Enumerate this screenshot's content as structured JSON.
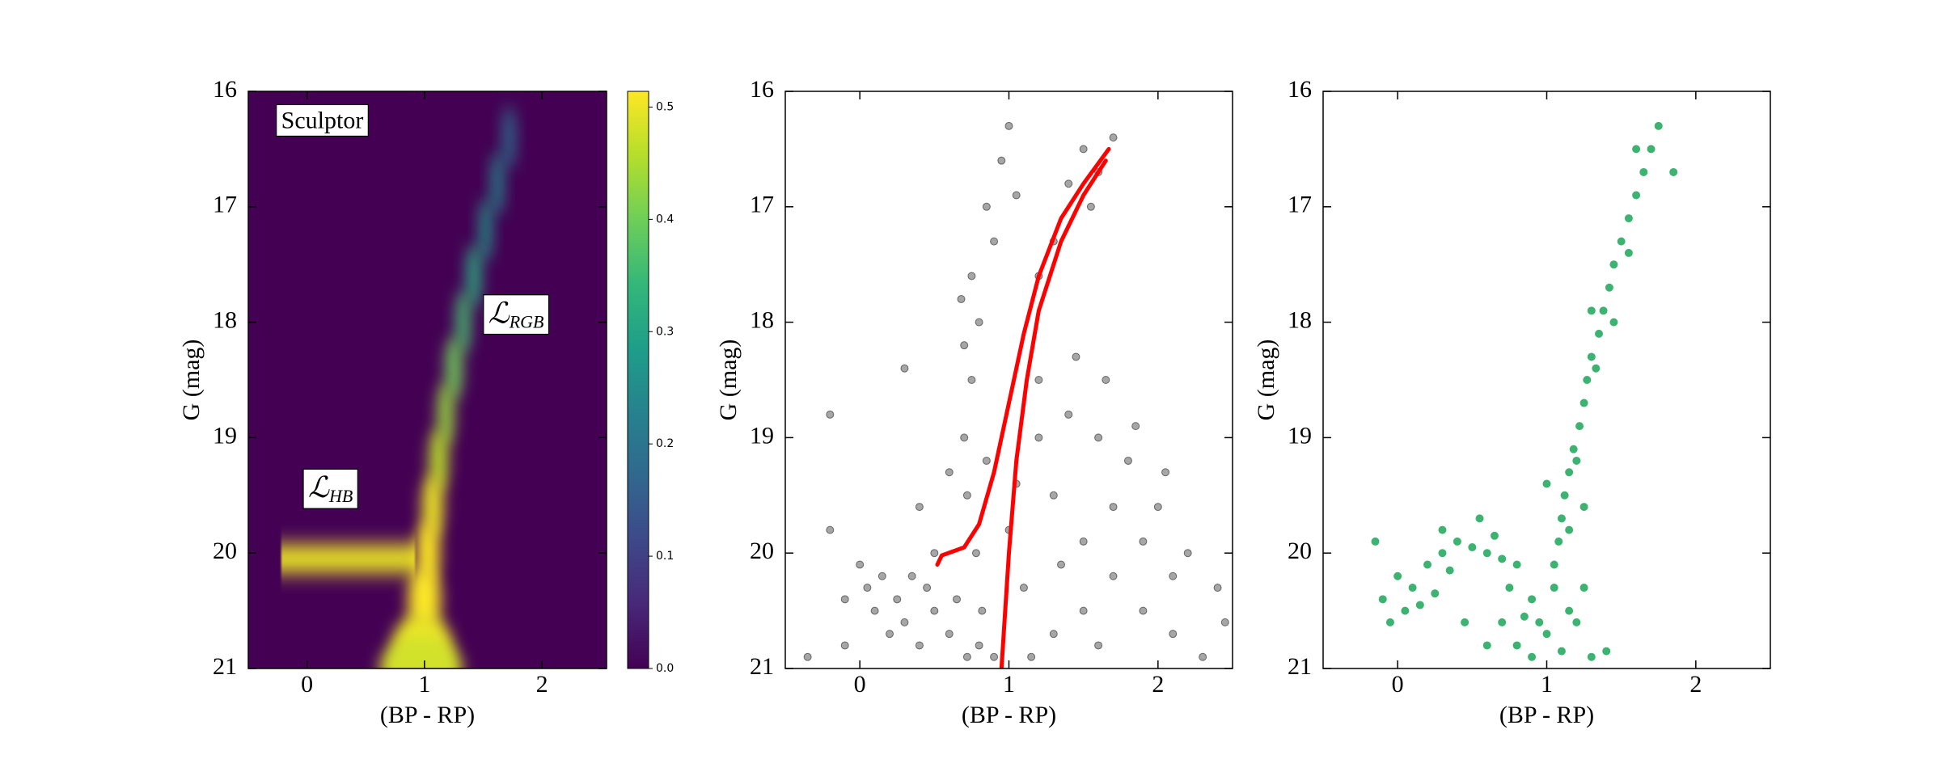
{
  "chart_data": [
    {
      "type": "heatmap",
      "xlabel": "(BP - RP)",
      "ylabel": "G (mag)",
      "xlim": [
        -0.5,
        2.55
      ],
      "ylim": [
        21,
        16
      ],
      "xticks": [
        0,
        1,
        2
      ],
      "yticks": [
        16,
        17,
        18,
        19,
        20,
        21
      ],
      "annotations": [
        {
          "text": "Sculptor",
          "x": 0.13,
          "y": 16.27
        },
        {
          "text": "ℒ",
          "sub": "RGB",
          "x": 1.78,
          "y": 17.95
        },
        {
          "text": "ℒ",
          "sub": "HB",
          "x": 0.2,
          "y": 19.46
        }
      ],
      "ridge": {
        "x": [
          1.72,
          1.62,
          1.52,
          1.42,
          1.33,
          1.25,
          1.18,
          1.12,
          1.07,
          1.03,
          1.0,
          0.98,
          0.97
        ],
        "y": [
          16.4,
          16.8,
          17.2,
          17.6,
          18.0,
          18.4,
          18.8,
          19.2,
          19.6,
          20.0,
          20.4,
          20.8,
          21.0
        ],
        "values": [
          0.2,
          0.25,
          0.28,
          0.32,
          0.36,
          0.4,
          0.43,
          0.46,
          0.5,
          0.52,
          0.52,
          0.5,
          0.48
        ],
        "widths": [
          0.05,
          0.05,
          0.05,
          0.06,
          0.06,
          0.07,
          0.07,
          0.08,
          0.09,
          0.1,
          0.14,
          0.25,
          0.35
        ]
      },
      "band": {
        "x": [
          -0.22,
          0.92
        ],
        "y": 20.05,
        "sigma": 0.12,
        "value": 0.5
      },
      "colormap": "viridis",
      "clim": [
        0,
        0.514
      ],
      "cticks": [
        {
          "value": 0,
          "label": "0.0"
        },
        {
          "value": 0.1,
          "label": "0.1"
        },
        {
          "value": 0.2,
          "label": "0.2"
        },
        {
          "value": 0.3,
          "label": "0.3"
        },
        {
          "value": 0.4,
          "label": "0.4"
        },
        {
          "value": 0.5,
          "label": "0.5"
        }
      ]
    },
    {
      "type": "scatter",
      "xlabel": "(BP - RP)",
      "ylabel": "G (mag)",
      "xlim": [
        -0.5,
        2.5
      ],
      "ylim": [
        21,
        16
      ],
      "xticks": [
        0,
        1,
        2
      ],
      "yticks": [
        16,
        17,
        18,
        19,
        20,
        21
      ],
      "series": [
        {
          "type": "points",
          "color": "#000000",
          "x": [
            0.05,
            0.15,
            0.25,
            0.1,
            0.35,
            0.3,
            0.45,
            0.2,
            0.0,
            -0.1,
            0.5,
            0.4,
            0.7,
            0.75,
            0.8,
            0.72,
            0.78,
            0.65,
            0.8,
            0.85,
            0.7,
            0.75,
            0.68,
            0.82,
            0.9,
            0.6,
            0.72,
            0.85,
            0.95,
            1.0,
            0.9,
            1.05,
            1.4,
            1.5,
            1.55,
            1.6,
            1.7,
            1.3,
            1.2,
            1.2,
            1.4,
            1.6,
            1.8,
            2.0,
            2.2,
            2.4,
            1.3,
            1.5,
            1.7,
            1.9,
            2.1,
            2.3,
            1.1,
            1.3,
            1.5,
            1.7,
            1.9,
            2.1,
            1.0,
            1.2,
            1.45,
            1.65,
            1.85,
            2.05,
            1.15,
            1.6,
            2.45,
            1.35,
            1.05,
            -0.2,
            -0.35,
            -0.2,
            0.3,
            0.4,
            0.5,
            0.6,
            -0.1
          ],
          "y": [
            20.3,
            20.2,
            20.4,
            20.5,
            20.2,
            20.6,
            20.3,
            20.7,
            20.1,
            20.4,
            20.5,
            20.8,
            19.0,
            18.5,
            18.0,
            19.5,
            20.0,
            20.4,
            20.8,
            19.2,
            18.2,
            17.6,
            17.8,
            20.5,
            20.9,
            20.7,
            20.9,
            17.0,
            16.6,
            16.3,
            17.3,
            16.9,
            16.8,
            16.5,
            17.0,
            16.7,
            16.4,
            17.3,
            17.6,
            18.5,
            18.8,
            19.0,
            19.2,
            19.6,
            20.0,
            20.3,
            19.5,
            19.9,
            20.2,
            20.5,
            20.7,
            20.9,
            20.3,
            20.7,
            20.5,
            19.6,
            19.9,
            20.2,
            19.8,
            19.0,
            18.3,
            18.5,
            18.9,
            19.3,
            20.9,
            20.8,
            20.6,
            20.1,
            19.4,
            19.8,
            20.9,
            18.8,
            18.4,
            19.6,
            20.0,
            19.3,
            20.8
          ]
        },
        {
          "type": "line",
          "color": "#ff0000",
          "x": [
            0.52,
            0.55,
            0.7,
            0.8,
            0.9,
            1.0,
            1.1,
            1.2,
            1.35,
            1.5,
            1.67
          ],
          "y": [
            20.1,
            20.02,
            19.95,
            19.75,
            19.3,
            18.7,
            18.1,
            17.6,
            17.1,
            16.8,
            16.5
          ]
        },
        {
          "type": "line",
          "color": "#ff0000",
          "x": [
            0.95,
            1.0,
            1.05,
            1.12,
            1.2,
            1.35,
            1.5,
            1.65
          ],
          "y": [
            21.0,
            20.0,
            19.2,
            18.5,
            17.9,
            17.3,
            16.9,
            16.6
          ]
        }
      ]
    },
    {
      "type": "scatter",
      "xlabel": "(BP - RP)",
      "ylabel": "G (mag)",
      "xlim": [
        -0.5,
        2.5
      ],
      "ylim": [
        21,
        16
      ],
      "xticks": [
        0,
        1,
        2
      ],
      "yticks": [
        16,
        17,
        18,
        19,
        20,
        21
      ],
      "series": [
        {
          "type": "points",
          "color": "#3cb371",
          "x": [
            1.75,
            1.7,
            1.65,
            1.6,
            1.55,
            1.5,
            1.45,
            1.42,
            1.38,
            1.35,
            1.3,
            1.27,
            1.25,
            1.22,
            1.18,
            1.15,
            1.12,
            1.1,
            1.08,
            1.05,
            1.85,
            1.6,
            1.55,
            1.33,
            1.2,
            1.15,
            1.25,
            1.0,
            1.3,
            1.45,
            -0.15,
            -0.1,
            0.0,
            0.1,
            0.2,
            0.3,
            0.4,
            0.5,
            0.6,
            0.7,
            0.8,
            0.05,
            0.15,
            0.25,
            0.35,
            0.45,
            0.55,
            0.65,
            -0.05,
            0.3,
            0.7,
            0.8,
            0.9,
            1.0,
            1.1,
            1.2,
            1.3,
            1.4,
            0.9,
            1.05,
            0.75,
            0.95,
            1.15,
            0.85,
            1.25,
            0.6
          ],
          "y": [
            16.3,
            16.5,
            16.7,
            16.9,
            17.1,
            17.3,
            17.5,
            17.7,
            17.9,
            18.1,
            18.3,
            18.5,
            18.7,
            18.9,
            19.1,
            19.3,
            19.5,
            19.7,
            19.9,
            20.1,
            16.7,
            16.5,
            17.4,
            18.4,
            19.2,
            19.8,
            19.6,
            19.4,
            17.9,
            18.0,
            19.9,
            20.4,
            20.2,
            20.3,
            20.1,
            20.0,
            19.9,
            19.95,
            20.0,
            20.05,
            20.1,
            20.5,
            20.45,
            20.35,
            20.15,
            20.6,
            19.7,
            19.85,
            20.6,
            19.8,
            20.6,
            20.8,
            20.9,
            20.7,
            20.85,
            20.6,
            20.9,
            20.85,
            20.4,
            20.3,
            20.3,
            20.6,
            20.5,
            20.55,
            20.3,
            20.8
          ]
        }
      ]
    }
  ]
}
